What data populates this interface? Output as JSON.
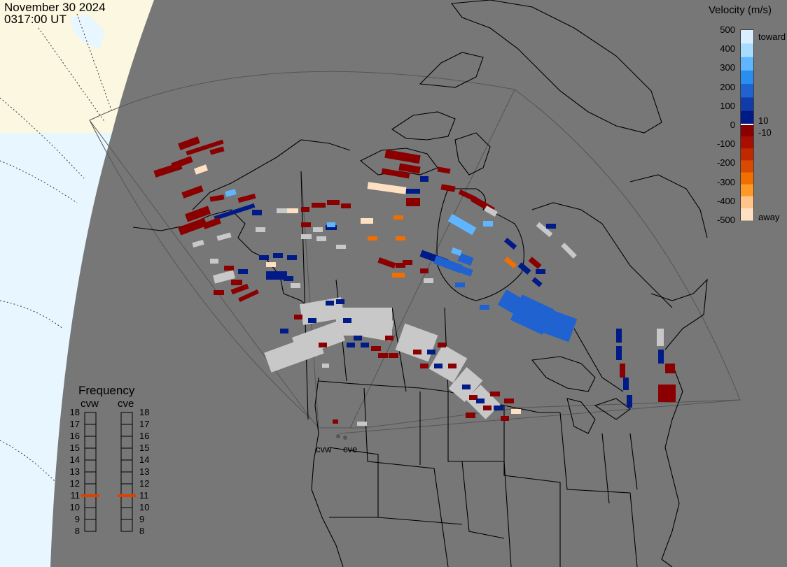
{
  "header": {
    "date": "November 30 2024",
    "time": "0317:00 UT"
  },
  "colorbar": {
    "title": "Velocity (m/s)",
    "ticks": [
      "500",
      "400",
      "300",
      "200",
      "100",
      "0",
      "-100",
      "-200",
      "-300",
      "-400",
      "-500"
    ],
    "side_labels": {
      "toward": "toward",
      "pos10": "10",
      "neg10": "-10",
      "away": "away"
    },
    "colors_toward": [
      "#d9efff",
      "#a8dcff",
      "#5fb6ff",
      "#2a8ef0",
      "#1f62d0",
      "#123aa8",
      "#001a88"
    ],
    "colors_away": [
      "#8a0000",
      "#a70f00",
      "#c02800",
      "#d84a00",
      "#f06f00",
      "#ff9a28",
      "#ffc48a",
      "#ffe0c2"
    ],
    "ground_color": "#c8c8c8"
  },
  "frequency": {
    "title": "Frequency",
    "radars": [
      "cvw",
      "cve"
    ],
    "scale": [
      "18",
      "17",
      "16",
      "15",
      "14",
      "13",
      "12",
      "11",
      "10",
      "9",
      "8"
    ],
    "selected_mhz": [
      11,
      11
    ],
    "indicator_color": "#e04000"
  },
  "stations": [
    "cvw",
    "cve"
  ],
  "map": {
    "background": "#777777",
    "sky_color": "#e8f6ff",
    "land_color": "#fbf7e0",
    "line_color": "#000000",
    "fov_color": "#5a5a5a"
  }
}
